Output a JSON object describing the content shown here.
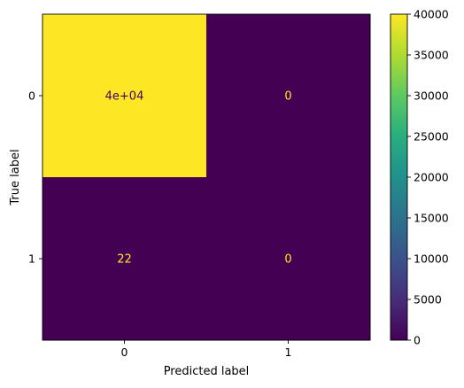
{
  "chart_data": {
    "type": "heatmap",
    "subtype": "confusion-matrix",
    "xlabel": "Predicted label",
    "ylabel": "True label",
    "x_categories": [
      "0",
      "1"
    ],
    "y_categories": [
      "0",
      "1"
    ],
    "values": [
      [
        40000,
        0
      ],
      [
        22,
        0
      ]
    ],
    "cell_text": [
      [
        "4e+04",
        "0"
      ],
      [
        "22",
        "0"
      ]
    ],
    "colormap": "viridis",
    "colors": {
      "min": "#440154",
      "max": "#fde725",
      "text_on_dark": "#fde725",
      "text_on_light": "#440154"
    },
    "colorbar": {
      "range": [
        0,
        40000
      ],
      "ticks": [
        0,
        5000,
        10000,
        15000,
        20000,
        25000,
        30000,
        35000,
        40000
      ]
    }
  }
}
